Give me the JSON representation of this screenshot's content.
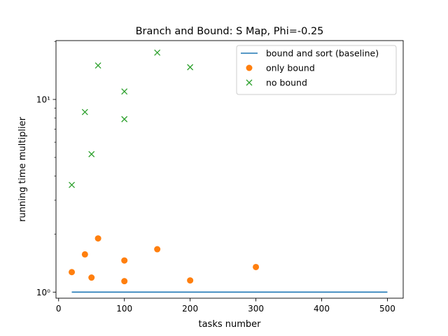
{
  "chart_data": {
    "type": "scatter",
    "title": "Branch and Bound: S Map, Phi=-0.25",
    "xlabel": "tasks number",
    "ylabel": "running time multiplier",
    "xlim": [
      -4,
      524
    ],
    "ylim": [
      0.93,
      20.2
    ],
    "yscale": "log",
    "x_ticks": [
      0,
      100,
      200,
      300,
      400,
      500
    ],
    "x_tick_labels": [
      "0",
      "100",
      "200",
      "300",
      "400",
      "500"
    ],
    "y_ticks": [
      1,
      10
    ],
    "y_tick_labels": [
      "10⁰",
      "10¹"
    ],
    "grid": false,
    "legend_position": "top-right",
    "series": [
      {
        "name": "bound and sort (baseline)",
        "kind": "line",
        "color": "#1f77b4",
        "x": [
          20,
          40,
          50,
          60,
          100,
          150,
          200,
          300,
          500
        ],
        "y": [
          1,
          1,
          1,
          1,
          1,
          1,
          1,
          1,
          1
        ]
      },
      {
        "name": "only bound",
        "kind": "marker-circle",
        "color": "#ff7f0e",
        "x": [
          20,
          40,
          50,
          60,
          100,
          100,
          150,
          200,
          300
        ],
        "y": [
          1.27,
          1.57,
          1.19,
          1.9,
          1.46,
          1.14,
          1.67,
          1.15,
          1.35
        ]
      },
      {
        "name": "no bound",
        "kind": "marker-x",
        "color": "#2ca02c",
        "x": [
          20,
          40,
          50,
          60,
          100,
          100,
          150,
          200
        ],
        "y": [
          3.6,
          8.6,
          5.2,
          15.0,
          11.0,
          7.9,
          17.5,
          14.7
        ]
      }
    ]
  }
}
